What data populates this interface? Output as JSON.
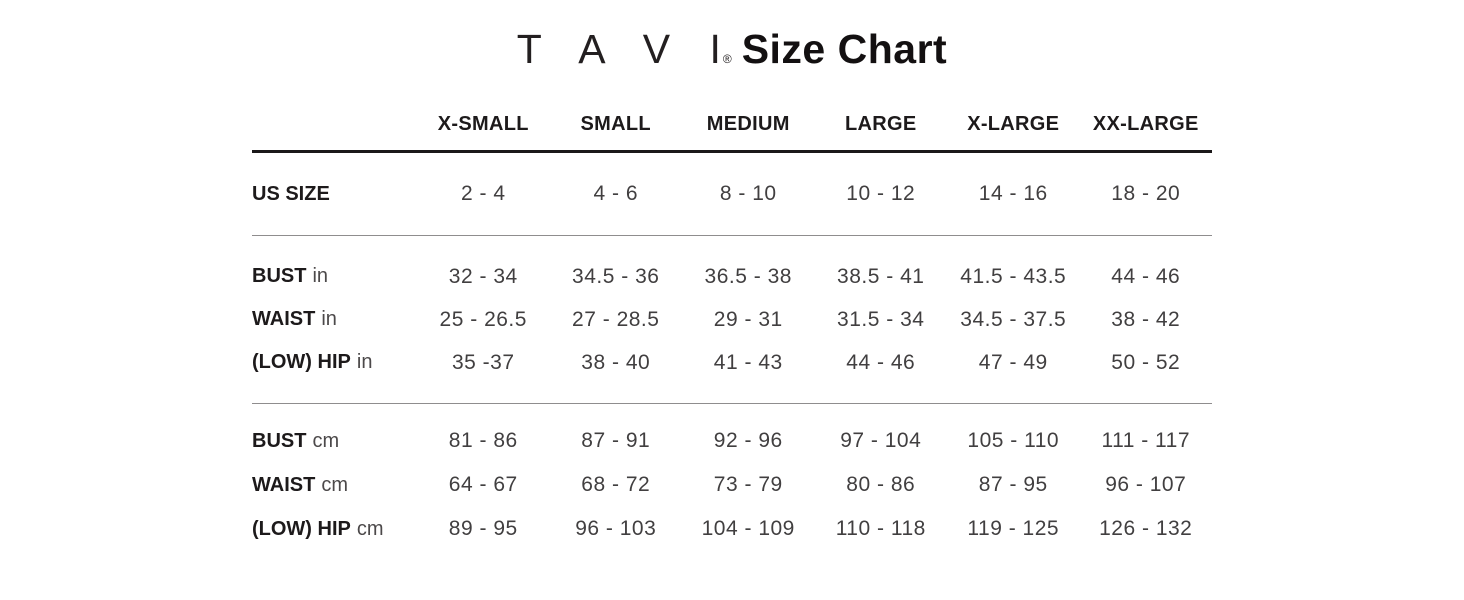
{
  "header": {
    "brand": "T A V I",
    "registered": "®",
    "title": "Size Chart"
  },
  "colors": {
    "background": "#ffffff",
    "heading_text": "#1d1a1b",
    "value_text": "#413f40",
    "divider_strong": "#1b1819",
    "divider_light": "#8f8d8e"
  },
  "chart_data": {
    "type": "table",
    "title": "T A V I ® Size Chart",
    "columns": [
      "X-SMALL",
      "SMALL",
      "MEDIUM",
      "LARGE",
      "X-LARGE",
      "XX-LARGE"
    ],
    "rows": [
      {
        "label": "US SIZE",
        "unit": "",
        "values": [
          "2 - 4",
          "4 - 6",
          "8 - 10",
          "10 - 12",
          "14 - 16",
          "18 - 20"
        ]
      },
      {
        "label": "BUST",
        "unit": "in",
        "values": [
          "32 - 34",
          "34.5 - 36",
          "36.5 - 38",
          "38.5 - 41",
          "41.5 - 43.5",
          "44 - 46"
        ]
      },
      {
        "label": "WAIST",
        "unit": "in",
        "values": [
          "25 - 26.5",
          "27 - 28.5",
          "29 - 31",
          "31.5 - 34",
          "34.5 - 37.5",
          "38 - 42"
        ]
      },
      {
        "label": "(LOW) HIP",
        "unit": "in",
        "values": [
          "35 -37",
          "38 - 40",
          "41 - 43",
          "44 - 46",
          "47 - 49",
          "50 - 52"
        ]
      },
      {
        "label": "BUST",
        "unit": "cm",
        "values": [
          "81 - 86",
          "87 - 91",
          "92 - 96",
          "97 - 104",
          "105 - 110",
          "111 - 117"
        ]
      },
      {
        "label": "WAIST",
        "unit": "cm",
        "values": [
          "64 - 67",
          "68 - 72",
          "73 - 79",
          "80 - 86",
          "87 - 95",
          "96 - 107"
        ]
      },
      {
        "label": "(LOW) HIP",
        "unit": "cm",
        "values": [
          "89 - 95",
          "96 - 103",
          "104 - 109",
          "110 - 118",
          "119 - 125",
          "126 - 132"
        ]
      }
    ],
    "layout": {
      "grid": false,
      "sections": [
        "us-size",
        "inches",
        "centimeters"
      ]
    }
  }
}
